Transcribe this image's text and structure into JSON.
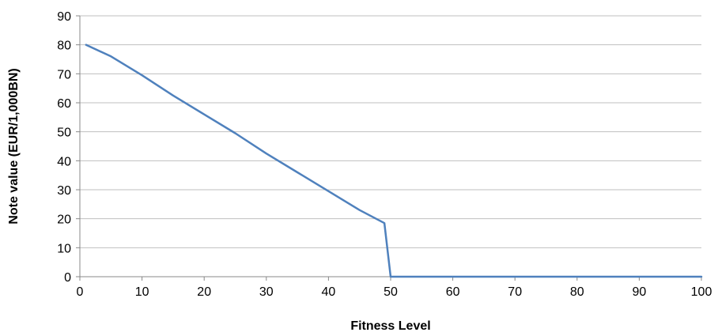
{
  "chart_data": {
    "type": "line",
    "title": "",
    "xlabel": "Fitness Level",
    "ylabel": "Note value  (EUR/1,000BN)",
    "xlim": [
      0,
      100
    ],
    "ylim": [
      0,
      90
    ],
    "x_ticks": [
      0,
      10,
      20,
      30,
      40,
      50,
      60,
      70,
      80,
      90,
      100
    ],
    "y_ticks": [
      0,
      10,
      20,
      30,
      40,
      50,
      60,
      70,
      80,
      90
    ],
    "grid": {
      "horizontal": true,
      "vertical": false
    },
    "legend": "none",
    "series": [
      {
        "color": "#4f81bd",
        "x": [
          1,
          5,
          10,
          15,
          20,
          25,
          30,
          35,
          40,
          45,
          49,
          50,
          60,
          70,
          80,
          90,
          100
        ],
        "y": [
          80,
          76,
          69.5,
          62.5,
          56,
          49.5,
          42.5,
          36,
          29.5,
          23,
          18.5,
          0,
          0,
          0,
          0,
          0,
          0
        ]
      }
    ]
  }
}
